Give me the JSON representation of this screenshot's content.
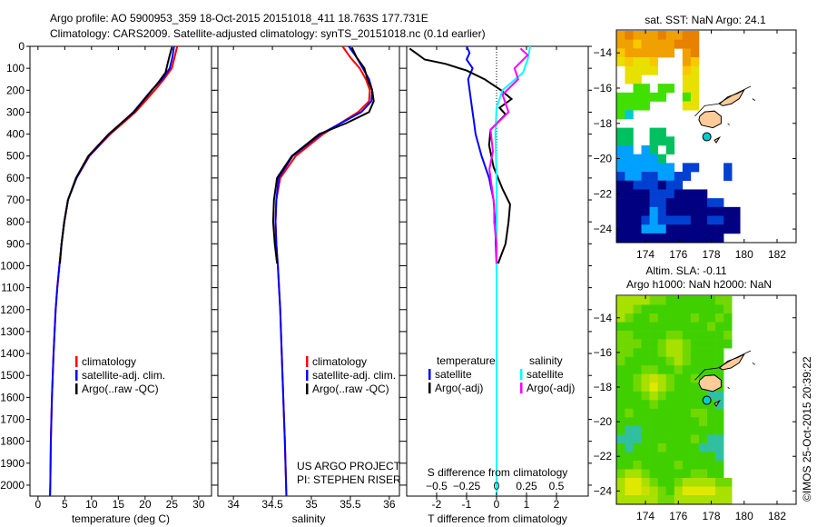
{
  "title": {
    "line1": "Argo profile: AO 5900953_359 18-Oct-2015 20151018_411 18.763S 177.731E",
    "line2": "Climatology: CARS2009. Satellite-adjusted climatology: synTS_20151018.nc (0.1d earlier)"
  },
  "copyright": "©IMOS 25-Oct-2015 20:39:22",
  "colors": {
    "climatology": "#ff0000",
    "satellite": "#0000ff",
    "argo": "#000000",
    "sal_satellite": "#00ffff",
    "sal_argo": "#ff00ff",
    "land": "#ffcc99",
    "argo_point": "#00cccc"
  },
  "chart_data": [
    {
      "type": "line",
      "id": "temperature",
      "xlabel": "temperature (deg C)",
      "xlim": [
        -1.5,
        32.4
      ],
      "ylim": [
        0,
        2050
      ],
      "xticks": [
        0,
        5,
        10,
        15,
        20,
        25,
        30
      ],
      "yticks": [
        0,
        100,
        200,
        300,
        400,
        500,
        600,
        700,
        800,
        900,
        1000,
        1100,
        1200,
        1300,
        1400,
        1500,
        1600,
        1700,
        1800,
        1900,
        2000
      ],
      "legend": [
        "climatology",
        "satellite-adj. clim.",
        "Argo(..raw -QC)"
      ],
      "series": [
        {
          "name": "climatology",
          "color": "#ff0000",
          "points": [
            [
              26,
              0
            ],
            [
              25.5,
              50
            ],
            [
              25,
              100
            ],
            [
              23.5,
              150
            ],
            [
              21.8,
              200
            ],
            [
              18.2,
              300
            ],
            [
              13.5,
              400
            ],
            [
              9.6,
              500
            ],
            [
              7.2,
              600
            ],
            [
              5.6,
              700
            ],
            [
              4.9,
              800
            ],
            [
              4.4,
              900
            ],
            [
              4.0,
              1000
            ],
            [
              3.6,
              1100
            ],
            [
              3.3,
              1200
            ],
            [
              2.9,
              1400
            ],
            [
              2.6,
              1600
            ],
            [
              2.4,
              1800
            ],
            [
              2.3,
              2000
            ],
            [
              2.25,
              2050
            ]
          ]
        },
        {
          "name": "satellite-adj. clim.",
          "color": "#0000ff",
          "points": [
            [
              25.4,
              0
            ],
            [
              25.1,
              50
            ],
            [
              24.6,
              100
            ],
            [
              23.2,
              150
            ],
            [
              21.2,
              200
            ],
            [
              17.8,
              300
            ],
            [
              13.3,
              400
            ],
            [
              9.5,
              500
            ],
            [
              7.2,
              600
            ],
            [
              5.6,
              700
            ],
            [
              4.9,
              800
            ],
            [
              4.4,
              900
            ],
            [
              4.0,
              1000
            ],
            [
              3.6,
              1100
            ],
            [
              3.3,
              1200
            ],
            [
              2.9,
              1400
            ],
            [
              2.6,
              1600
            ],
            [
              2.4,
              1800
            ],
            [
              2.3,
              2000
            ],
            [
              2.25,
              2050
            ]
          ]
        },
        {
          "name": "Argo(..raw -QC)",
          "color": "#000000",
          "points": [
            [
              25.0,
              5
            ],
            [
              24.6,
              40
            ],
            [
              24.2,
              80
            ],
            [
              23.8,
              120
            ],
            [
              22.6,
              160
            ],
            [
              21.3,
              200
            ],
            [
              17.9,
              300
            ],
            [
              13.2,
              400
            ],
            [
              9.4,
              500
            ],
            [
              7.1,
              600
            ],
            [
              5.6,
              700
            ],
            [
              4.9,
              800
            ],
            [
              4.4,
              900
            ],
            [
              4.1,
              990
            ]
          ]
        }
      ]
    },
    {
      "type": "line",
      "id": "salinity",
      "xlabel": "salinity",
      "xlim": [
        33.8,
        36.13
      ],
      "ylim": [
        0,
        2050
      ],
      "xticks": [
        34,
        34.5,
        35,
        35.5,
        36
      ],
      "legend": [
        "climatology",
        "satellite-adj. clim.",
        "Argo(..raw -QC)"
      ],
      "annotation": [
        "US ARGO PROJECT",
        "PI: STEPHEN RISER"
      ],
      "series": [
        {
          "name": "climatology",
          "color": "#ff0000",
          "points": [
            [
              35.4,
              0
            ],
            [
              35.5,
              50
            ],
            [
              35.62,
              100
            ],
            [
              35.7,
              150
            ],
            [
              35.75,
              200
            ],
            [
              35.74,
              250
            ],
            [
              35.6,
              300
            ],
            [
              35.15,
              400
            ],
            [
              34.8,
              500
            ],
            [
              34.6,
              600
            ],
            [
              34.55,
              700
            ],
            [
              34.54,
              800
            ],
            [
              34.55,
              900
            ],
            [
              34.57,
              1000
            ],
            [
              34.6,
              1200
            ],
            [
              34.63,
              1500
            ],
            [
              34.66,
              1800
            ],
            [
              34.68,
              2050
            ]
          ]
        },
        {
          "name": "satellite-adj. clim.",
          "color": "#0000ff",
          "points": [
            [
              35.48,
              0
            ],
            [
              35.58,
              50
            ],
            [
              35.66,
              100
            ],
            [
              35.74,
              150
            ],
            [
              35.78,
              200
            ],
            [
              35.77,
              250
            ],
            [
              35.64,
              300
            ],
            [
              35.12,
              400
            ],
            [
              34.76,
              500
            ],
            [
              34.58,
              600
            ],
            [
              34.55,
              700
            ],
            [
              34.54,
              800
            ],
            [
              34.55,
              900
            ],
            [
              34.57,
              1000
            ],
            [
              34.6,
              1200
            ],
            [
              34.63,
              1500
            ],
            [
              34.66,
              1800
            ],
            [
              34.68,
              2050
            ]
          ]
        },
        {
          "name": "Argo(..raw -QC)",
          "color": "#000000",
          "points": [
            [
              35.52,
              5
            ],
            [
              35.58,
              50
            ],
            [
              35.68,
              100
            ],
            [
              35.72,
              150
            ],
            [
              35.78,
              200
            ],
            [
              35.8,
              250
            ],
            [
              35.74,
              300
            ],
            [
              35.45,
              350
            ],
            [
              35.1,
              400
            ],
            [
              34.75,
              500
            ],
            [
              34.56,
              600
            ],
            [
              34.52,
              700
            ],
            [
              34.51,
              800
            ],
            [
              34.53,
              900
            ],
            [
              34.56,
              990
            ]
          ]
        }
      ]
    },
    {
      "type": "line",
      "id": "differences",
      "xlabel": "T difference from climatology",
      "x2label": "S difference from climatology",
      "xlim": [
        -3,
        3.06
      ],
      "ylim": [
        0,
        2050
      ],
      "xticks": [
        -2,
        -1,
        0,
        1,
        2
      ],
      "x2ticks": [
        -0.5,
        -0.25,
        0,
        0.25,
        0.5
      ],
      "x2_per_x": 0.25,
      "legend": {
        "temperature_label": "temperature",
        "salinity_label": "salinity",
        "items": [
          "satellite",
          "Argo(-adj)",
          "satellite",
          "Argo(-adj)"
        ]
      },
      "series": [
        {
          "name": "T satellite",
          "color": "#0000ff",
          "scale": "T",
          "points": [
            [
              -1.0,
              0
            ],
            [
              -0.9,
              30
            ],
            [
              -1.0,
              60
            ],
            [
              -0.8,
              100
            ],
            [
              -0.95,
              150
            ],
            [
              -0.9,
              200
            ],
            [
              -0.8,
              300
            ],
            [
              -0.75,
              350
            ],
            [
              -0.7,
              400
            ],
            [
              -0.5,
              500
            ],
            [
              -0.25,
              600
            ],
            [
              -0.1,
              700
            ],
            [
              -0.05,
              800
            ],
            [
              0,
              1000
            ],
            [
              0,
              2050
            ]
          ]
        },
        {
          "name": "T Argo(-adj)",
          "color": "#000000",
          "scale": "T",
          "points": [
            [
              -2.9,
              10
            ],
            [
              -2.7,
              30
            ],
            [
              -2.4,
              60
            ],
            [
              -1.7,
              80
            ],
            [
              -1.0,
              110
            ],
            [
              -0.4,
              150
            ],
            [
              0.15,
              200
            ],
            [
              0.5,
              240
            ],
            [
              0.1,
              280
            ],
            [
              0.3,
              310
            ],
            [
              -0.2,
              380
            ],
            [
              -0.25,
              450
            ],
            [
              -0.1,
              550
            ],
            [
              0.2,
              650
            ],
            [
              0.45,
              720
            ],
            [
              0.4,
              800
            ],
            [
              0.3,
              900
            ],
            [
              0.05,
              990
            ]
          ]
        },
        {
          "name": "S satellite",
          "color": "#00ffff",
          "scale": "S",
          "points": [
            [
              0.28,
              0
            ],
            [
              0.26,
              60
            ],
            [
              0.22,
              120
            ],
            [
              0.05,
              200
            ],
            [
              0,
              280
            ],
            [
              -0.01,
              400
            ],
            [
              0,
              600
            ],
            [
              0,
              2050
            ]
          ]
        },
        {
          "name": "S Argo(-adj)",
          "color": "#ff00ff",
          "scale": "S",
          "points": [
            [
              0.2,
              10
            ],
            [
              0.26,
              40
            ],
            [
              0.15,
              100
            ],
            [
              0.18,
              150
            ],
            [
              0.05,
              220
            ],
            [
              0.1,
              300
            ],
            [
              -0.05,
              380
            ],
            [
              -0.03,
              480
            ],
            [
              -0.06,
              560
            ],
            [
              -0.04,
              640
            ],
            [
              -0.02,
              720
            ],
            [
              -0.02,
              800
            ],
            [
              0,
              900
            ],
            [
              0,
              990
            ]
          ]
        }
      ]
    },
    {
      "type": "heatmap",
      "id": "sst_map",
      "title": "sat. SST: NaN Argo: 24.1",
      "lon0": 172.25,
      "lat0": -12.75,
      "cell": 0.5,
      "xlim": [
        172.23,
        183.16
      ],
      "ylim": [
        -24.77,
        -12.7
      ],
      "xticks": [
        174,
        176,
        178,
        180,
        182
      ],
      "yticks": [
        -14,
        -16,
        -18,
        -20,
        -22,
        -24
      ],
      "palette": {
        "O": "#f0a000",
        "o": "#e88000",
        "Y": "#e8e000",
        "y": "#f8c800",
        "G": "#40e000",
        "T": "#00c8d0",
        "M": "#00c060",
        "C": "#00a0ff",
        "B": "#0040d0",
        "N": "#000080"
      },
      "rows": [
        "OoOOOoOOoo......",
        "OOyOOOOooo......",
        "yOOOOOO.Oo......",
        "YyYYy...Oy......",
        ".YYYY...yY......",
        ".YY.....YY......",
        "..GG.GG.YY......",
        "GGGGGG..GY......",
        "GGGG....YY......",
        "GT..............",
        "................",
        "MM..MM..........",
        "MM..MMM.........",
        "CC.CM.M.........",
        "CCCCCM..........",
        "CCCCCCC.BB...B..",
        "BCCBBCCBB....B..",
        "NNBBBNBB........",
        "NNNNBBBNNNN.....",
        "NNNNBBNNNNNBB...",
        "NNNNCBNNNNNNNNN.",
        "NNNBCBBBBNNBBNN.",
        "NNNCCCNNNNNNNNN.",
        "NNNNNNNNNNNNN..."
      ],
      "argo_point": [
        177.731,
        -18.763
      ]
    },
    {
      "type": "heatmap",
      "id": "sla_map",
      "title1": "Altim. SLA: -0.11",
      "title2": "Argo h1000: NaN h2000: NaN",
      "lon0": 172.25,
      "lat0": -12.75,
      "cell": 0.5,
      "xlim": [
        172.23,
        183.16
      ],
      "ylim": [
        -24.77,
        -12.7
      ],
      "xticks": [
        174,
        176,
        178,
        180,
        182
      ],
      "yticks": [
        -14,
        -16,
        -18,
        -20,
        -22,
        -24
      ],
      "palette": {
        "L": "#a8e000",
        "G": "#40d000",
        "g": "#70d800",
        "T": "#30c0a0",
        "Y": "#e0e800",
        "y": "#c8e000"
      },
      "rows": [
        "LLLLggGGGGGGgg..",
        "LLgGGGGGGGGGGg..",
        "LgGGgGGGGgGGgG..",
        "GGGGGGGGGGGgGG..",
        "ggGGGGggGGGGGg..",
        "gggGGgLLgGGGGG..",
        "ggGGGgLLgGGGG...",
        "gGGGGGgLgGGGG...",
        "GGGggGGgGGGGG...",
        "GGgLyLgGGgGGG...",
        "GGgLYLgGGGGTG...",
        "GGGgLgGGGGGTT...",
        "GGGGgGGGGGGGT...",
        "GgGGGGGGGggGG...",
        "GGGGGGGGGGgGG...",
        "GTTGGGGGGGGGG...",
        "TTTGGGGGGgGTT...",
        "GTGGGgGGGGTTT...",
        "GGGGGGGGGGGGT...",
        "GGgGGGGgGGGGG...",
        "gLLgGGGGGggGG...",
        "LYYLgGGgLLLLgg..",
        "LYYyLgGLYYYYLL..",
        "LLLLLggLLLLLLL.."
      ],
      "argo_point": [
        177.731,
        -18.763
      ]
    }
  ]
}
